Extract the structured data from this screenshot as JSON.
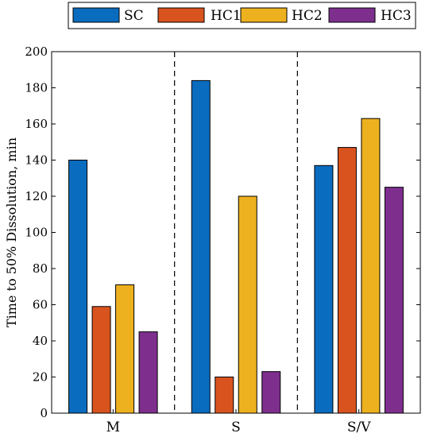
{
  "chart_data": {
    "type": "bar",
    "categories": [
      "M",
      "S",
      "S/V"
    ],
    "series": [
      {
        "name": "SC",
        "values": [
          140,
          184,
          137
        ]
      },
      {
        "name": "HC1",
        "values": [
          59,
          20,
          147
        ]
      },
      {
        "name": "HC2",
        "values": [
          71,
          120,
          163
        ]
      },
      {
        "name": "HC3",
        "values": [
          45,
          23,
          125
        ]
      }
    ],
    "colors": [
      "#0a6cbf",
      "#d9531e",
      "#edb120",
      "#7e2f8e"
    ],
    "title": "",
    "xlabel": "",
    "ylabel": "Time to 50% Dissolution, min",
    "ylim": [
      0,
      200
    ],
    "yticks": [
      0,
      20,
      40,
      60,
      80,
      100,
      120,
      140,
      160,
      180,
      200
    ],
    "group_separators": "dashed",
    "grid": false,
    "legend": {
      "placement": "top",
      "orientation": "horizontal"
    }
  }
}
